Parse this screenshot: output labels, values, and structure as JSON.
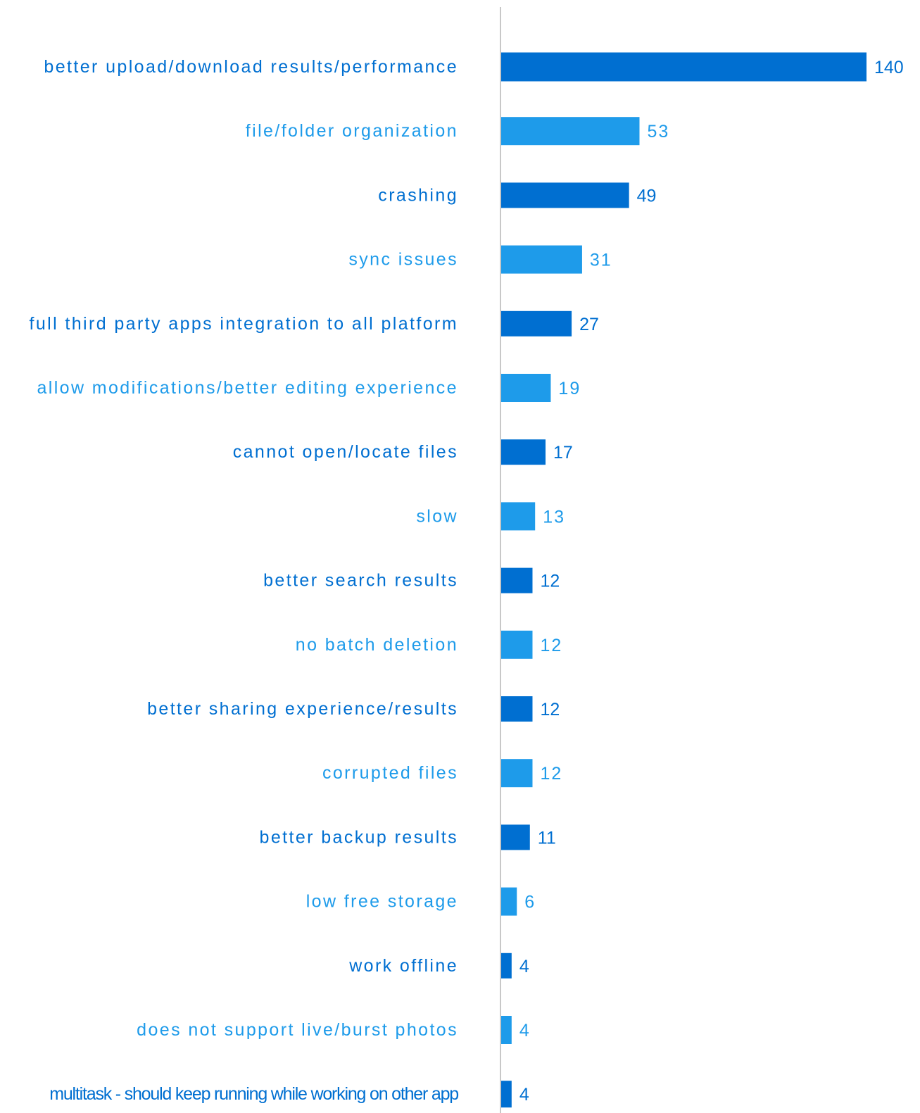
{
  "chart_data": {
    "type": "bar",
    "orientation": "horizontal",
    "title": "",
    "xlabel": "",
    "ylabel": "",
    "categories": [
      "better upload/download results/performance",
      "file/folder organization",
      "crashing",
      "sync issues",
      "full third party apps integration to all platform",
      "allow modifications/better editing experience",
      "cannot open/locate files",
      "slow",
      "better search results",
      "no batch deletion",
      "better sharing experience/results",
      "corrupted files",
      "better backup results",
      "low free storage",
      "work offline",
      "does not support live/burst photos",
      "multitask - should keep running while working on other app"
    ],
    "values": [
      140,
      53,
      49,
      31,
      27,
      19,
      17,
      13,
      12,
      12,
      12,
      12,
      11,
      6,
      4,
      4,
      4
    ],
    "xlim": [
      0,
      140
    ],
    "grid": false,
    "legend": "none",
    "colors": {
      "dark": "#006FD1",
      "light": "#1E9BEA",
      "axis": "#C8C8C8"
    },
    "color_pattern": [
      "dark",
      "light"
    ]
  }
}
